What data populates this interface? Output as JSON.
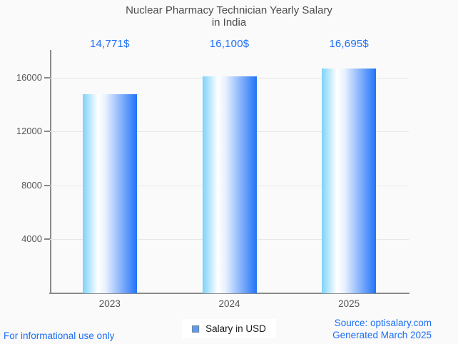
{
  "page": {
    "background": "#fafafa"
  },
  "title": {
    "line1": "Nuclear Pharmacy Technician Yearly Salary",
    "line2": "in India",
    "color": "#4d4d4d"
  },
  "chart_data": {
    "type": "bar",
    "title": "Nuclear Pharmacy Technician Yearly Salary in India",
    "categories": [
      "2023",
      "2024",
      "2025"
    ],
    "values": [
      14771,
      16100,
      16695
    ],
    "value_labels": [
      "14,771$",
      "16,100$",
      "16,695$"
    ],
    "xlabel": "",
    "ylabel": "",
    "yticks": [
      4000,
      8000,
      12000,
      16000
    ],
    "ylim": [
      0,
      18066
    ],
    "grid": true,
    "legend": {
      "label": "Salary in USD",
      "position": "bottom-center"
    },
    "colors": {
      "bar_gradient_left": "#7dd2f9",
      "bar_gradient_mid": "#ffffff",
      "bar_gradient_pale": "#e8f1fe",
      "bar_gradient_right": "#2273f8",
      "value_label": "#1c6ef5",
      "axis": "#8a8a8a",
      "gridline": "#e7e7e7",
      "tick_label": "#565656",
      "legend_swatch": "#5b9bf3"
    }
  },
  "footer": {
    "disclaimer": "For informational use only",
    "source": "Source: optisalary.com",
    "generated": "Generated March 2025",
    "link_color": "#1c6ef5"
  }
}
